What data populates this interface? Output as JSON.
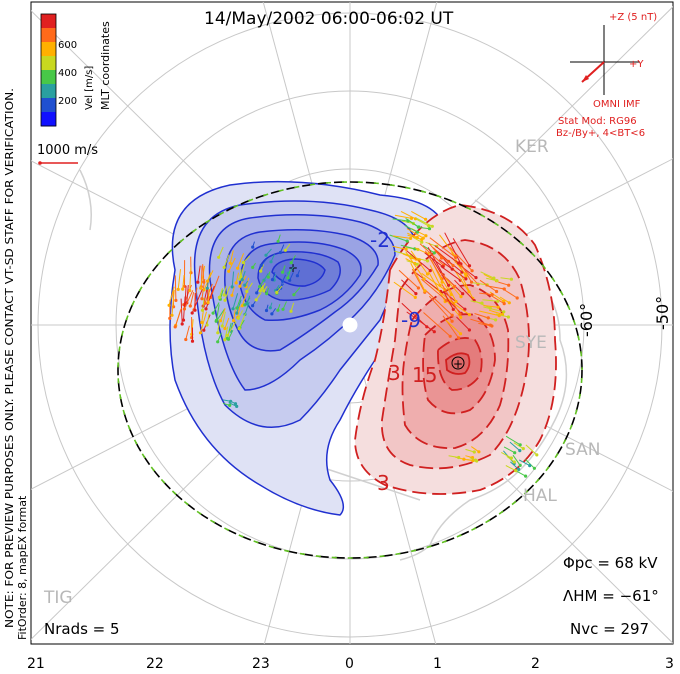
{
  "title": "14/May/2002 06:00-06:02 UT",
  "colorbar": {
    "label": "Vel [m/s]",
    "ticks": [
      "600",
      "400",
      "200"
    ],
    "colors": [
      "#e02020",
      "#ff6a1a",
      "#ffb000",
      "#c8d820",
      "#48c848",
      "#2aa0a0",
      "#2050d0",
      "#1010ff"
    ]
  },
  "coordinates_label": "MLT coordinates",
  "note_text": "NOTE: FOR PREVIEW PURPOSES ONLY. PLEASE CONTACT VT-SD STAFF FOR VERIFICATION.",
  "fitorder_text": "FitOrder: 8, mapEX format",
  "vector_scale": "1000 m/s",
  "imf": {
    "title": "+Z (5 nT)",
    "y_label": "+Y",
    "source": "OMNI IMF",
    "stat_mod": "Stat Mod: RG96",
    "stat_cond": "Bz-/By+, 4<BT<6"
  },
  "latitude_labels": [
    "-60°",
    "-50°"
  ],
  "stations": [
    "KER",
    "SYE",
    "SAN",
    "HAL",
    "TIG"
  ],
  "contour_labels": [
    "-2",
    "-9",
    "3",
    "15",
    "3"
  ],
  "stats": {
    "phi_pc": "Φpc = 68 kV",
    "lambda_hm": "ΛHM = −61°",
    "n_vc": "Nvc = 297",
    "n_rads": "Nrads = 5"
  },
  "mlt_axis": [
    "21",
    "22",
    "23",
    "0",
    "1",
    "2",
    "3"
  ],
  "colors": {
    "negative_cell": "#2030d0",
    "positive_cell": "#d02020",
    "hm_boundary": "#60c020"
  }
}
